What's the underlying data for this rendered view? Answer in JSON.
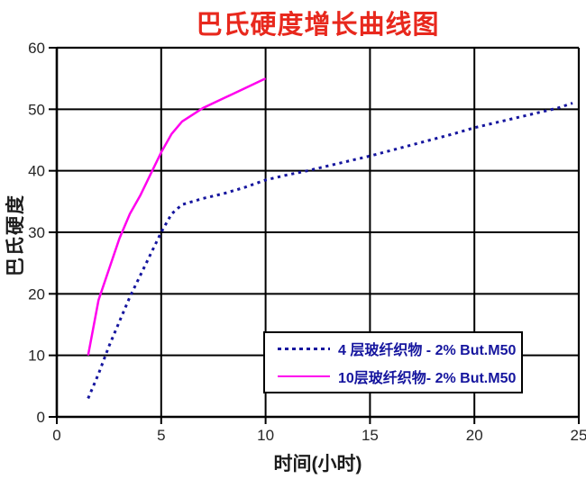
{
  "colors": {
    "title": "#e8281d",
    "legend_text": "#15159e",
    "axis": "#000000",
    "tick_label": "#262626",
    "background": "#ffffff"
  },
  "chart_data": {
    "type": "line",
    "title": "巴氏硬度增长曲线图",
    "xlabel": "时间(小时)",
    "ylabel": "巴氏硬度",
    "xlim": [
      0,
      25
    ],
    "ylim": [
      0,
      60
    ],
    "x_ticks": [
      0,
      5,
      10,
      15,
      20,
      25
    ],
    "y_ticks": [
      0,
      10,
      20,
      30,
      40,
      50,
      60
    ],
    "grid": true,
    "legend_position": "inside-bottom-right",
    "series": [
      {
        "name": "4 层玻纤织物 - 2% But.M50",
        "line_style": "dotted",
        "color": "#15159e",
        "x": [
          1.5,
          2,
          2.5,
          3,
          3.5,
          4,
          4.5,
          5,
          5.5,
          6,
          7,
          8,
          9,
          10,
          11,
          12,
          13,
          14,
          15,
          16,
          17,
          18,
          19,
          20,
          21,
          22,
          23,
          24,
          24.7
        ],
        "y": [
          3,
          7,
          11.5,
          15.5,
          19.5,
          23,
          26.5,
          30,
          33,
          34.5,
          35.5,
          36.3,
          37.3,
          38.5,
          39.3,
          40,
          40.8,
          41.6,
          42.4,
          43.3,
          44.2,
          45.1,
          46,
          47,
          47.8,
          48.6,
          49.4,
          50.2,
          51
        ]
      },
      {
        "name": "10层玻纤织物- 2% But.M50",
        "line_style": "solid",
        "color": "#ff00ee",
        "x": [
          1.5,
          2,
          2.5,
          3,
          3.5,
          4,
          4.5,
          5,
          5.5,
          6,
          7,
          8,
          9,
          10
        ],
        "y": [
          10,
          19,
          24,
          29,
          33,
          36,
          39.5,
          43,
          46,
          48,
          50.2,
          51.8,
          53.4,
          55
        ]
      }
    ]
  }
}
